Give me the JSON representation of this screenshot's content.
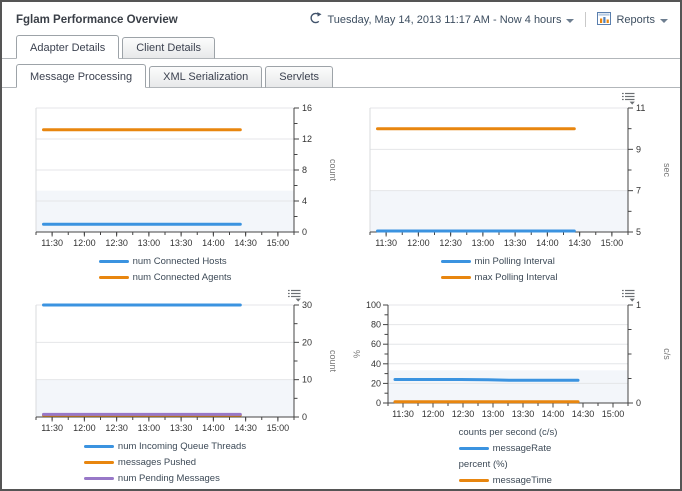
{
  "window": {
    "title": "Fglam Performance Overview"
  },
  "header": {
    "timerange_label": "Tuesday, May 14, 2013 11:17 AM - Now 4 hours",
    "reports_label": "Reports"
  },
  "tabs": {
    "level1": [
      {
        "label": "Adapter Details",
        "active": true
      },
      {
        "label": "Client Details",
        "active": false
      }
    ],
    "level2": [
      {
        "label": "Message Processing",
        "active": true
      },
      {
        "label": "XML Serialization",
        "active": false
      },
      {
        "label": "Servlets",
        "active": false
      }
    ]
  },
  "colors": {
    "blue": "#3B93E0",
    "orange": "#E8860F",
    "purple": "#9878C8"
  },
  "chart_data": [
    {
      "type": "line",
      "name": "connected-hosts-agents",
      "options_icon": false,
      "x_domain": [
        675,
        915
      ],
      "x_ticks": [
        "11:30",
        "12:00",
        "12:30",
        "13:00",
        "13:30",
        "14:00",
        "14:30",
        "15:00"
      ],
      "y_right": {
        "min": 0,
        "max": 16,
        "majors": [
          0,
          4,
          8,
          12,
          16
        ],
        "minors": [
          2,
          6,
          10,
          14
        ],
        "unit": "count"
      },
      "y_left": null,
      "series": [
        {
          "name": "num Connected Hosts",
          "color_key": "blue",
          "points": [
            [
              682,
              1
            ],
            [
              865,
              1
            ]
          ]
        },
        {
          "name": "num Connected Agents",
          "color_key": "orange",
          "points": [
            [
              682,
              13.2
            ],
            [
              865,
              13.2
            ]
          ]
        }
      ],
      "legend": [
        {
          "color_key": "blue",
          "label": "num Connected Hosts"
        },
        {
          "color_key": "orange",
          "label": "num Connected Agents"
        }
      ]
    },
    {
      "type": "line",
      "name": "polling-interval",
      "options_icon": true,
      "x_domain": [
        675,
        915
      ],
      "x_ticks": [
        "11:30",
        "12:00",
        "12:30",
        "13:00",
        "13:30",
        "14:00",
        "14:30",
        "15:00"
      ],
      "y_right": {
        "min": 5,
        "max": 11,
        "majors": [
          5,
          7,
          9,
          11
        ],
        "minors": [
          6,
          8,
          10
        ],
        "unit": "sec"
      },
      "y_left": null,
      "series": [
        {
          "name": "min Polling Interval",
          "color_key": "blue",
          "points": [
            [
              682,
              5.05
            ],
            [
              865,
              5.05
            ]
          ]
        },
        {
          "name": "max Polling Interval",
          "color_key": "orange",
          "points": [
            [
              682,
              10
            ],
            [
              865,
              10
            ]
          ]
        }
      ],
      "legend": [
        {
          "color_key": "blue",
          "label": "min Polling Interval"
        },
        {
          "color_key": "orange",
          "label": "max Polling Interval"
        }
      ]
    },
    {
      "type": "line",
      "name": "queue-threads-messages",
      "options_icon": true,
      "x_domain": [
        675,
        915
      ],
      "x_ticks": [
        "11:30",
        "12:00",
        "12:30",
        "13:00",
        "13:30",
        "14:00",
        "14:30",
        "15:00"
      ],
      "y_right": {
        "min": 0,
        "max": 30,
        "majors": [
          0,
          10,
          20,
          30
        ],
        "minors": [
          5,
          15,
          25
        ],
        "unit": "count"
      },
      "y_left": null,
      "series": [
        {
          "name": "num Incoming Queue Threads",
          "color_key": "blue",
          "points": [
            [
              682,
              30
            ],
            [
              865,
              30
            ]
          ]
        },
        {
          "name": "messages Pushed",
          "color_key": "orange",
          "points": [
            [
              682,
              0.5
            ],
            [
              865,
              0.5
            ]
          ]
        },
        {
          "name": "num Pending Messages",
          "color_key": "purple",
          "points": [
            [
              682,
              0.7
            ],
            [
              865,
              0.7
            ]
          ]
        }
      ],
      "legend": [
        {
          "color_key": "blue",
          "label": "num Incoming Queue Threads"
        },
        {
          "color_key": "orange",
          "label": "messages Pushed"
        },
        {
          "color_key": "purple",
          "label": "num Pending Messages"
        }
      ]
    },
    {
      "type": "line",
      "name": "message-rate-time",
      "options_icon": true,
      "x_domain": [
        675,
        915
      ],
      "x_ticks": [
        "11:30",
        "12:00",
        "12:30",
        "13:00",
        "13:30",
        "14:00",
        "14:30",
        "15:00"
      ],
      "y_left": {
        "min": 0,
        "max": 100,
        "majors": [
          0,
          20,
          40,
          60,
          80,
          100
        ],
        "minors": [
          10,
          30,
          50,
          70,
          90
        ],
        "unit": "%"
      },
      "y_right": {
        "min": 0,
        "max": 1,
        "majors": [
          0,
          1
        ],
        "minors": [
          0.25,
          0.5,
          0.75
        ],
        "unit": "c/s"
      },
      "series": [
        {
          "name": "messageRate",
          "color_key": "blue",
          "points": [
            [
              682,
              24
            ],
            [
              748,
              24
            ],
            [
              775,
              23.7
            ],
            [
              800,
              23.2
            ],
            [
              865,
              23.2
            ]
          ]
        },
        {
          "name": "messageTime",
          "color_key": "orange",
          "points": [
            [
              682,
              1.2
            ],
            [
              865,
              1.2
            ]
          ]
        }
      ],
      "legend": [
        {
          "heading": "counts per second (c/s)"
        },
        {
          "color_key": "blue",
          "label": "messageRate"
        },
        {
          "heading": "percent (%)"
        },
        {
          "color_key": "orange",
          "label": "messageTime"
        }
      ]
    }
  ]
}
